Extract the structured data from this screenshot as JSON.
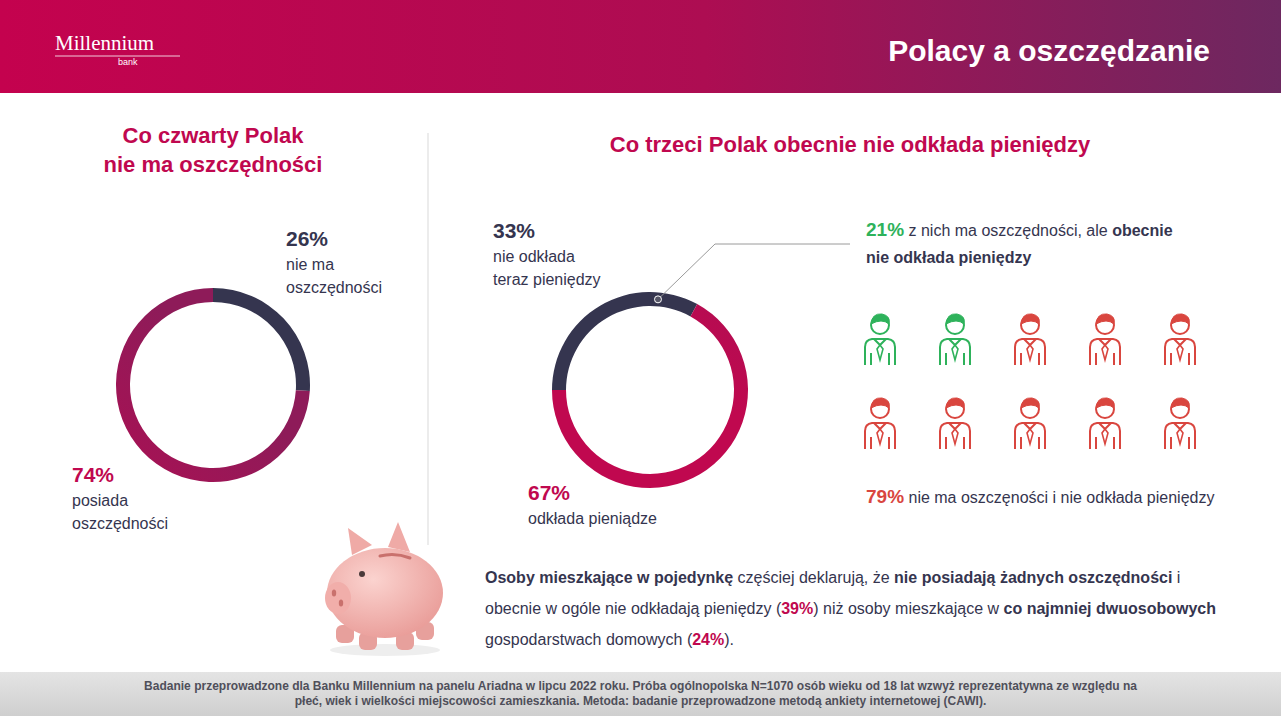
{
  "header": {
    "brand": "Millennium",
    "brand_sub": "bank",
    "title": "Polacy a oszczędzanie"
  },
  "chart_data": [
    {
      "type": "donut",
      "title": "Co czwarty Polak nie ma oszczędności",
      "categories": [
        "nie ma oszczędności",
        "posiada oszczędności"
      ],
      "values": [
        26,
        74
      ],
      "value_labels": [
        "26%",
        "74%"
      ],
      "colors": [
        "#35354f",
        "#c0084f"
      ],
      "data_labels": true
    },
    {
      "type": "donut",
      "title": "Co trzeci Polak obecnie nie odkłada pieniędzy",
      "categories": [
        "nie odkłada teraz pieniędzy",
        "odkłada pieniądze"
      ],
      "values": [
        33,
        67
      ],
      "value_labels": [
        "33%",
        "67%"
      ],
      "colors": [
        "#35354f",
        "#c0084f"
      ],
      "data_labels": true
    },
    {
      "type": "pictogram",
      "categories": [
        [
          "z nich ma oszczędności, ale ",
          "obecnie nie odkłada pieniędzy"
        ],
        [
          "nie ma oszczęności i nie odkłada pieniędzy"
        ]
      ],
      "values": [
        21,
        79
      ],
      "value_labels": [
        "21%",
        "79%"
      ],
      "colors": [
        "#2eb25b",
        "#d9463f"
      ],
      "data_labels": true
    }
  ],
  "note": {
    "segments": [
      "Osoby mieszkające w pojedynkę",
      " częściej deklarują, że ",
      "nie posiadają żadnych oszczędności",
      " i obecnie w ogóle nie odkładają pieniędzy (",
      ") niż osoby mieszkające w ",
      "co najmniej dwuosobowych",
      " gospodarstwach domowych (",
      ")."
    ],
    "values": [
      39,
      24
    ],
    "value_labels": [
      "39%",
      "24%"
    ]
  },
  "footnote": "Badanie przeprowadzone dla Banku Millennium na panelu Ariadna w lipcu 2022 roku. Próba ogólnopolska N=1070 osób wieku od 18 lat wzwyż reprezentatywna ze względu na płeć, wiek i wielkości miejscowości zamieszkania. Metoda: badanie przeprowadzone metodą ankiety internetowej (CAWI)."
}
